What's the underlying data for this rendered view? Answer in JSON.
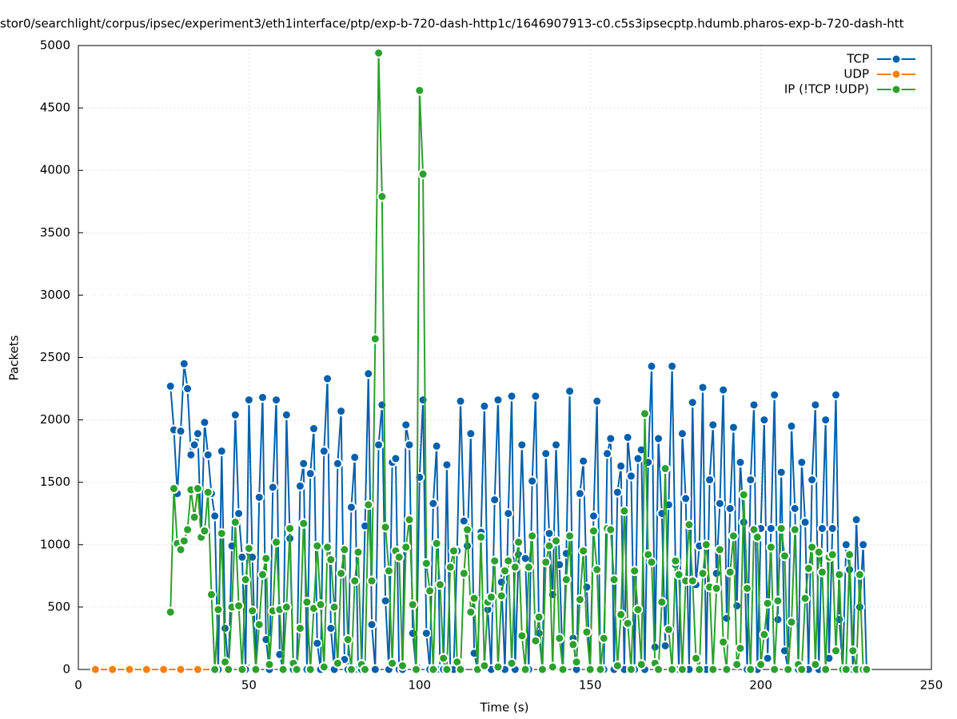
{
  "chart_data": {
    "type": "line",
    "title": "stor0/searchlight/corpus/ipsec/experiment3/eth1interface/ptp/exp-b-720-dash-http1c/1646907913-c0.c5s3ipsecptp.hdumb.pharos-exp-b-720-dash-htt",
    "x_label": "Time (s)",
    "y_label": "Packets",
    "xlim": [
      0,
      250
    ],
    "xticks": [
      0,
      50,
      100,
      150,
      200,
      250
    ],
    "ylim": [
      0,
      5000
    ],
    "yticks": [
      0,
      500,
      1000,
      1500,
      2000,
      2500,
      3000,
      3500,
      4000,
      4500,
      5000
    ],
    "grid": true,
    "legend": "top-right",
    "series": [
      {
        "name": "TCP",
        "color": "#0060ad",
        "x": [
          27,
          28,
          29,
          30,
          31,
          32,
          33,
          34,
          35,
          36,
          37,
          38,
          39,
          40,
          41,
          42,
          43,
          44,
          45,
          46,
          47,
          48,
          49,
          50,
          51,
          52,
          53,
          54,
          55,
          56,
          57,
          58,
          59,
          60,
          61,
          62,
          63,
          64,
          65,
          66,
          67,
          68,
          69,
          70,
          71,
          72,
          73,
          74,
          75,
          76,
          77,
          78,
          79,
          80,
          81,
          82,
          83,
          84,
          85,
          86,
          87,
          88,
          89,
          90,
          91,
          92,
          93,
          94,
          95,
          96,
          97,
          98,
          99,
          100,
          101,
          102,
          103,
          104,
          105,
          106,
          107,
          108,
          109,
          110,
          111,
          112,
          113,
          114,
          115,
          116,
          117,
          118,
          119,
          120,
          121,
          122,
          123,
          124,
          125,
          126,
          127,
          128,
          129,
          130,
          131,
          132,
          133,
          134,
          135,
          136,
          137,
          138,
          139,
          140,
          141,
          142,
          143,
          144,
          145,
          146,
          147,
          148,
          149,
          150,
          151,
          152,
          153,
          154,
          155,
          156,
          157,
          158,
          159,
          160,
          161,
          162,
          163,
          164,
          165,
          166,
          167,
          168,
          169,
          170,
          171,
          172,
          173,
          174,
          175,
          176,
          177,
          178,
          179,
          180,
          181,
          182,
          183,
          184,
          185,
          186,
          187,
          188,
          189,
          190,
          191,
          192,
          193,
          194,
          195,
          196,
          197,
          198,
          199,
          200,
          201,
          202,
          203,
          204,
          205,
          206,
          207,
          208,
          209,
          210,
          211,
          212,
          213,
          214,
          215,
          216,
          217,
          218,
          219,
          220,
          221,
          222,
          223,
          224,
          225,
          226,
          227,
          228,
          229,
          230,
          231
        ],
        "values": [
          2270,
          1920,
          1410,
          1910,
          2450,
          2250,
          1720,
          1800,
          1890,
          1060,
          1980,
          1720,
          1410,
          1230,
          0,
          1750,
          330,
          0,
          990,
          2040,
          1250,
          900,
          0,
          2160,
          900,
          0,
          1380,
          2180,
          240,
          0,
          1460,
          2160,
          120,
          0,
          2040,
          1050,
          0,
          0,
          1470,
          1650,
          0,
          1570,
          1930,
          210,
          0,
          1750,
          2330,
          330,
          0,
          1650,
          2070,
          80,
          0,
          1300,
          1700,
          0,
          0,
          1150,
          2370,
          360,
          0,
          1800,
          2120,
          550,
          0,
          1660,
          1690,
          0,
          0,
          1960,
          1800,
          290,
          0,
          1540,
          2160,
          290,
          0,
          1330,
          1790,
          0,
          0,
          1640,
          0,
          0,
          950,
          2150,
          1190,
          990,
          1890,
          130,
          0,
          1100,
          2110,
          480,
          0,
          1360,
          2160,
          700,
          0,
          1250,
          2190,
          0,
          920,
          1800,
          890,
          0,
          1510,
          2190,
          290,
          0,
          1730,
          1090,
          600,
          1800,
          840,
          0,
          930,
          2230,
          250,
          0,
          1410,
          1670,
          660,
          0,
          1230,
          2150,
          0,
          0,
          1730,
          1850,
          0,
          1420,
          1630,
          0,
          1860,
          1550,
          0,
          1690,
          1760,
          0,
          1660,
          2430,
          180,
          1850,
          1250,
          190,
          1320,
          2430,
          840,
          0,
          1890,
          1370,
          0,
          2140,
          680,
          990,
          2260,
          0,
          1520,
          1960,
          770,
          1330,
          2240,
          410,
          1290,
          1940,
          510,
          1660,
          1180,
          0,
          1520,
          2120,
          0,
          1130,
          2000,
          90,
          1130,
          2200,
          400,
          1580,
          150,
          0,
          1950,
          1290,
          0,
          1660,
          1180,
          0,
          1520,
          2120,
          0,
          1130,
          2000,
          90,
          1130,
          2200,
          400,
          0,
          1000,
          800,
          0,
          1200,
          500,
          1000,
          0
        ]
      },
      {
        "name": "UDP",
        "color": "#ff7f0e",
        "x": [
          5,
          10,
          15,
          20,
          25,
          30,
          35,
          40
        ],
        "values": [
          0,
          0,
          0,
          0,
          0,
          0,
          0,
          0
        ]
      },
      {
        "name": "IP (!TCP  !UDP)",
        "color": "#2ca02c",
        "x": [
          27,
          28,
          29,
          30,
          31,
          32,
          33,
          34,
          35,
          36,
          37,
          38,
          39,
          40,
          41,
          42,
          43,
          44,
          45,
          46,
          47,
          48,
          49,
          50,
          51,
          52,
          53,
          54,
          55,
          56,
          57,
          58,
          59,
          60,
          61,
          62,
          63,
          64,
          65,
          66,
          67,
          68,
          69,
          70,
          71,
          72,
          73,
          74,
          75,
          76,
          77,
          78,
          79,
          80,
          81,
          82,
          83,
          84,
          85,
          86,
          87,
          88,
          89,
          90,
          91,
          92,
          93,
          94,
          95,
          96,
          97,
          98,
          99,
          100,
          101,
          102,
          103,
          104,
          105,
          106,
          107,
          108,
          109,
          110,
          111,
          112,
          113,
          114,
          115,
          116,
          117,
          118,
          119,
          120,
          121,
          122,
          123,
          124,
          125,
          126,
          127,
          128,
          129,
          130,
          131,
          132,
          133,
          134,
          135,
          136,
          137,
          138,
          139,
          140,
          141,
          142,
          143,
          144,
          145,
          146,
          147,
          148,
          149,
          150,
          151,
          152,
          153,
          154,
          155,
          156,
          157,
          158,
          159,
          160,
          161,
          162,
          163,
          164,
          165,
          166,
          167,
          168,
          169,
          170,
          171,
          172,
          173,
          174,
          175,
          176,
          177,
          178,
          179,
          180,
          181,
          182,
          183,
          184,
          185,
          186,
          187,
          188,
          189,
          190,
          191,
          192,
          193,
          194,
          195,
          196,
          197,
          198,
          199,
          200,
          201,
          202,
          203,
          204,
          205,
          206,
          207,
          208,
          209,
          210,
          211,
          212,
          213,
          214,
          215,
          216,
          217,
          218,
          219,
          220,
          221,
          222,
          223,
          224,
          225,
          226,
          227,
          228,
          229,
          230,
          231
        ],
        "values": [
          460,
          1450,
          1010,
          960,
          1030,
          1120,
          1440,
          1220,
          1450,
          1060,
          1110,
          1420,
          600,
          0,
          480,
          1090,
          60,
          0,
          500,
          1180,
          510,
          0,
          720,
          970,
          470,
          0,
          360,
          760,
          890,
          40,
          470,
          1020,
          480,
          0,
          500,
          1130,
          50,
          0,
          330,
          1170,
          540,
          0,
          490,
          990,
          520,
          20,
          980,
          880,
          500,
          50,
          770,
          960,
          240,
          0,
          710,
          940,
          40,
          0,
          1320,
          710,
          2650,
          4940,
          3790,
          1140,
          790,
          50,
          950,
          900,
          30,
          980,
          1200,
          520,
          0,
          4640,
          3970,
          850,
          630,
          0,
          1010,
          680,
          90,
          0,
          820,
          950,
          60,
          0,
          770,
          1120,
          460,
          570,
          0,
          1060,
          30,
          540,
          580,
          870,
          20,
          590,
          790,
          870,
          50,
          820,
          1020,
          270,
          0,
          820,
          1070,
          230,
          420,
          0,
          860,
          990,
          20,
          1030,
          250,
          0,
          720,
          1070,
          200,
          60,
          560,
          950,
          300,
          0,
          1110,
          800,
          0,
          250,
          1130,
          1120,
          720,
          30,
          440,
          1270,
          370,
          0,
          790,
          480,
          40,
          2050,
          920,
          860,
          50,
          0,
          540,
          1610,
          320,
          0,
          870,
          760,
          0,
          710,
          1160,
          710,
          90,
          0,
          770,
          1000,
          660,
          0,
          650,
          960,
          220,
          0,
          780,
          1070,
          40,
          170,
          1400,
          650,
          0,
          1120,
          1060,
          40,
          280,
          530,
          980,
          0,
          550,
          1130,
          910,
          0,
          380,
          1120,
          40,
          0,
          570,
          810,
          980,
          40,
          940,
          780,
          0,
          900,
          920,
          150,
          760,
          0,
          0,
          920,
          150,
          0,
          760,
          0,
          0
        ]
      }
    ]
  }
}
